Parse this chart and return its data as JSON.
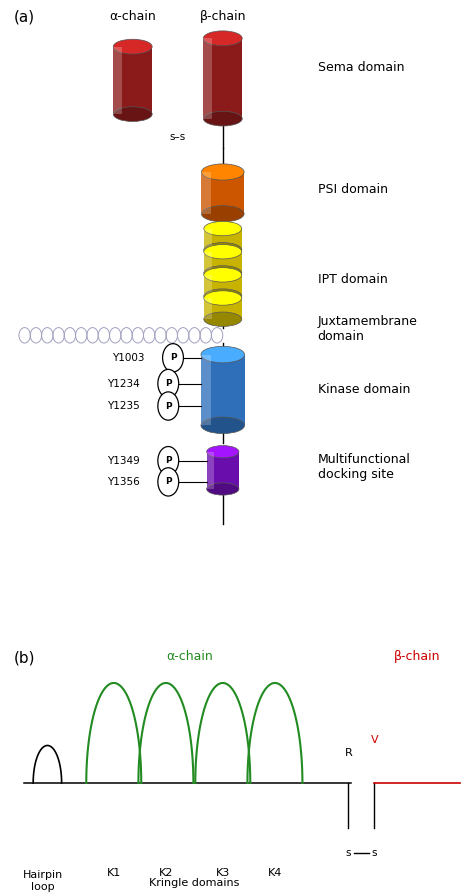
{
  "fig_width": 4.74,
  "fig_height": 8.93,
  "bg_color": "#ffffff",
  "panel_a": {
    "label": "(a)",
    "alpha_chain_label": "α-chain",
    "beta_chain_label": "β-chain"
  },
  "panel_b": {
    "label": "(b)",
    "alpha_chain_label": "α-chain",
    "beta_chain_label": "β-chain",
    "alpha_color": "#228B22",
    "beta_color": "#cc0000",
    "kringle_labels": [
      "K1",
      "K2",
      "K3",
      "K4"
    ],
    "kringle_domains_label": "Kringle domains"
  },
  "colors": {
    "dark_red": "#8b1a1a",
    "orange": "#cc5500",
    "gold": "#c8b400",
    "blue": "#2f6fba",
    "purple": "#6a0dad",
    "green": "#228B22",
    "red_text": "#cc0000",
    "black": "#000000",
    "gray_helix": "#a0a0c0"
  }
}
